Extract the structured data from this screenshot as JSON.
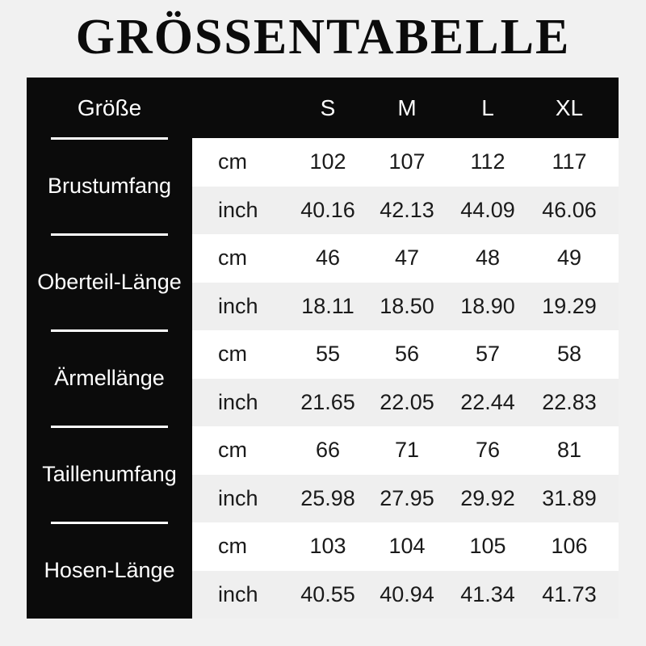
{
  "page": {
    "title": "GRÖSSENTABELLE",
    "background_color": "#f1f1f1"
  },
  "table": {
    "colors": {
      "header_bg": "#0b0b0b",
      "header_text": "#ffffff",
      "label_column_bg": "#0b0b0b",
      "label_column_text": "#ffffff",
      "cm_row_bg": "#ffffff",
      "inch_row_bg": "#efefef",
      "body_text": "#1a1a1a",
      "divider": "#ffffff"
    },
    "header": {
      "label": "Größe",
      "sizes": [
        "S",
        "M",
        "L",
        "XL"
      ]
    },
    "unit_labels": {
      "cm": "cm",
      "inch": "inch"
    },
    "rows": [
      {
        "label": "Brustumfang",
        "cm": [
          "102",
          "107",
          "112",
          "117"
        ],
        "inch": [
          "40.16",
          "42.13",
          "44.09",
          "46.06"
        ]
      },
      {
        "label": "Oberteil-Länge",
        "cm": [
          "46",
          "47",
          "48",
          "49"
        ],
        "inch": [
          "18.11",
          "18.50",
          "18.90",
          "19.29"
        ]
      },
      {
        "label": "Ärmellänge",
        "cm": [
          "55",
          "56",
          "57",
          "58"
        ],
        "inch": [
          "21.65",
          "22.05",
          "22.44",
          "22.83"
        ]
      },
      {
        "label": "Taillenumfang",
        "cm": [
          "66",
          "71",
          "76",
          "81"
        ],
        "inch": [
          "25.98",
          "27.95",
          "29.92",
          "31.89"
        ]
      },
      {
        "label": "Hosen-Länge",
        "cm": [
          "103",
          "104",
          "105",
          "106"
        ],
        "inch": [
          "40.55",
          "40.94",
          "41.34",
          "41.73"
        ]
      }
    ]
  }
}
